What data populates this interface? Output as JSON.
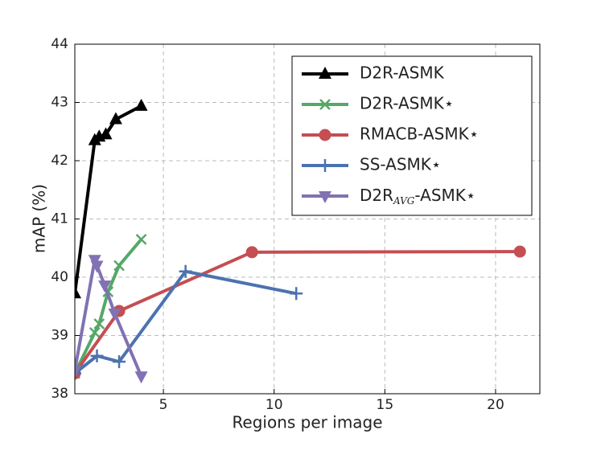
{
  "chart_data": {
    "type": "line",
    "xlabel": "Regions per image",
    "ylabel": "mAP (%)",
    "xlim": [
      1,
      22
    ],
    "ylim": [
      38,
      44
    ],
    "xticks": [
      5,
      10,
      15,
      20
    ],
    "yticks": [
      38,
      39,
      40,
      41,
      42,
      43,
      44
    ],
    "grid": true,
    "legend": "upper right",
    "series": [
      {
        "name": "D2R-ASMK",
        "color": "#000000",
        "marker": "^",
        "x": [
          1,
          1.9,
          2.1,
          2.4,
          2.85,
          4.0
        ],
        "values": [
          39.72,
          42.35,
          42.41,
          42.45,
          42.71,
          42.94
        ]
      },
      {
        "name": "D2R-ASMK⋆",
        "color": "#55a868",
        "marker": "x",
        "x": [
          1,
          1.9,
          2.1,
          2.5,
          3,
          4
        ],
        "values": [
          38.35,
          39.05,
          39.2,
          39.75,
          40.2,
          40.65
        ]
      },
      {
        "name": "RMACB-ASMK⋆",
        "color": "#c44e52",
        "marker": "o",
        "x": [
          1,
          3,
          9,
          21.1
        ],
        "values": [
          38.35,
          39.42,
          40.43,
          40.44
        ]
      },
      {
        "name": "SS-ASMK⋆",
        "color": "#4c72b0",
        "marker": "+",
        "x": [
          1,
          2,
          3,
          6,
          11
        ],
        "values": [
          38.35,
          38.65,
          38.55,
          40.1,
          39.72
        ]
      },
      {
        "name": "D2R_{AVG}-ASMK⋆",
        "color": "#8172b2",
        "marker": "v",
        "x": [
          1,
          1.9,
          2.0,
          2.35,
          2.8,
          4.0
        ],
        "values": [
          38.4,
          40.3,
          40.2,
          39.86,
          39.38,
          38.3
        ]
      }
    ]
  }
}
